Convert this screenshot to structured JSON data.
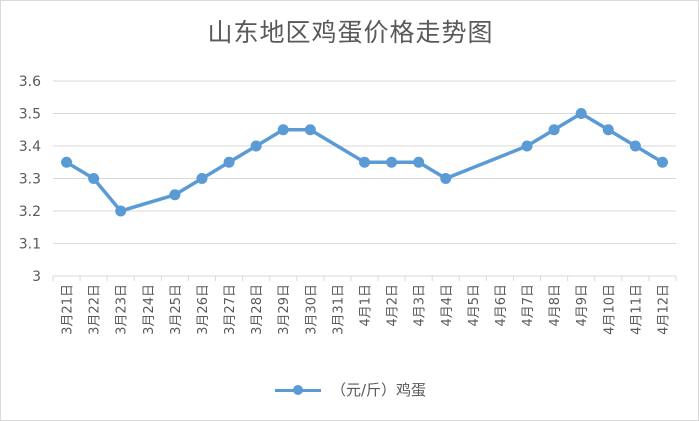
{
  "colors": {
    "series": "#5b9bd5",
    "grid": "#d9d9d9",
    "text": "#595959"
  },
  "chart_data": {
    "type": "line",
    "title": "山东地区鸡蛋价格走势图",
    "xlabel": "",
    "ylabel": "",
    "categories": [
      "3月21日",
      "3月22日",
      "3月23日",
      "3月24日",
      "3月25日",
      "3月26日",
      "3月27日",
      "3月28日",
      "3月29日",
      "3月30日",
      "3月31日",
      "4月1日",
      "4月2日",
      "4月3日",
      "4月4日",
      "4月5日",
      "4月6日",
      "4月7日",
      "4月8日",
      "4月9日",
      "4月10日",
      "4月11日",
      "4月12日"
    ],
    "series": [
      {
        "name": "（元/斤）鸡蛋",
        "values": [
          3.35,
          3.3,
          3.2,
          null,
          3.25,
          3.3,
          3.35,
          3.4,
          3.45,
          3.45,
          null,
          3.35,
          3.35,
          3.35,
          3.3,
          null,
          null,
          3.4,
          3.45,
          3.5,
          3.45,
          3.4,
          3.35
        ]
      }
    ],
    "ylim": [
      3,
      3.6
    ],
    "yticks": [
      "3",
      "3.1",
      "3.2",
      "3.3",
      "3.4",
      "3.5",
      "3.6"
    ],
    "grid": true,
    "legend": "bottom"
  }
}
